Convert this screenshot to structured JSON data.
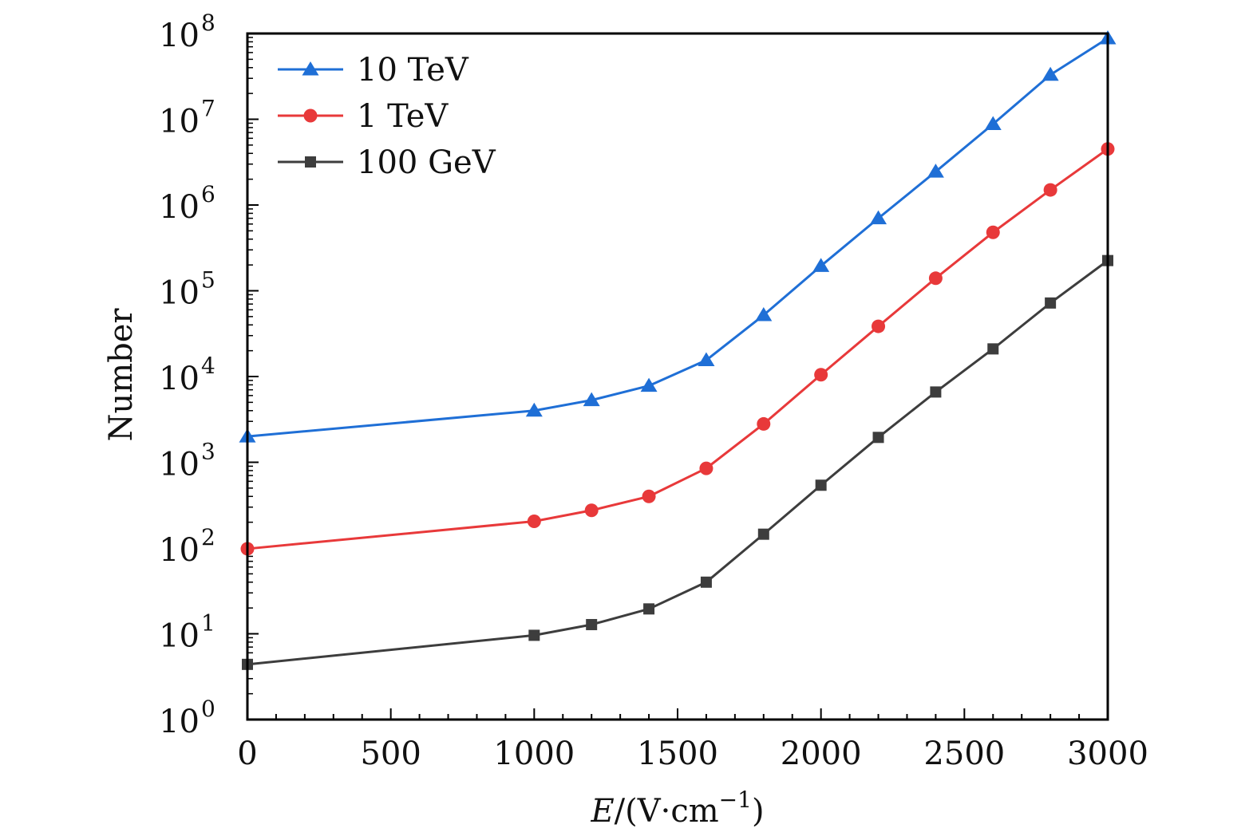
{
  "chart_data": {
    "type": "line",
    "xlabel": {
      "var": "E",
      "rest": "/(V·cm",
      "exp": "−1",
      "close": ")"
    },
    "ylabel": "Number",
    "xlim": [
      0,
      3000
    ],
    "ylim": [
      1,
      100000000
    ],
    "yscale": "log",
    "xticks": [
      "0",
      "500",
      "1000",
      "1500",
      "2000",
      "2500",
      "3000"
    ],
    "yticks": [
      {
        "base": "10",
        "exp": "0"
      },
      {
        "base": "10",
        "exp": "1"
      },
      {
        "base": "10",
        "exp": "2"
      },
      {
        "base": "10",
        "exp": "3"
      },
      {
        "base": "10",
        "exp": "4"
      },
      {
        "base": "10",
        "exp": "5"
      },
      {
        "base": "10",
        "exp": "6"
      },
      {
        "base": "10",
        "exp": "7"
      },
      {
        "base": "10",
        "exp": "8"
      }
    ],
    "grid": false,
    "legend_position": "top-left",
    "series": [
      {
        "name": "10 TeV",
        "color": "#1f6fd6",
        "marker": "triangle",
        "x": [
          0,
          1000,
          1200,
          1400,
          1600,
          1800,
          2000,
          2200,
          2400,
          2600,
          2800,
          3000
        ],
        "y": [
          2000,
          4000,
          5300,
          7800,
          15500,
          52000,
          195000,
          700000,
          2450000,
          8800000,
          33000000,
          88000000
        ]
      },
      {
        "name": "1 TeV",
        "color": "#e8393a",
        "marker": "circle",
        "x": [
          0,
          1000,
          1200,
          1400,
          1600,
          1800,
          2000,
          2200,
          2400,
          2600,
          2800,
          3000
        ],
        "y": [
          98,
          205,
          275,
          400,
          850,
          2800,
          10500,
          38500,
          140000,
          480000,
          1500000,
          4500000
        ]
      },
      {
        "name": "100 GeV",
        "color": "#3d3d3d",
        "marker": "square",
        "x": [
          0,
          1000,
          1200,
          1400,
          1600,
          1800,
          2000,
          2200,
          2400,
          2600,
          2800,
          3000
        ],
        "y": [
          4.4,
          9.6,
          12.8,
          19.5,
          40,
          145,
          540,
          1950,
          6600,
          21000,
          72000,
          225000
        ]
      }
    ]
  }
}
